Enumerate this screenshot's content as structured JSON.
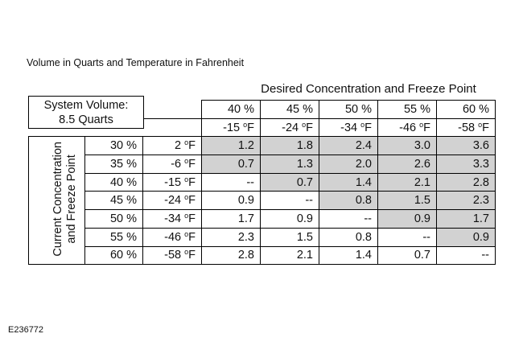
{
  "caption": "Volume in Quarts and Temperature in Fahrenheit",
  "header_title": "Desired Concentration and Freeze Point",
  "system_volume": {
    "line1": "System Volume:",
    "line2": "8.5 Quarts"
  },
  "desired": {
    "concentrations": [
      "40 %",
      "45 %",
      "50 %",
      "55 %",
      "60 %"
    ],
    "freeze_points": [
      "-15 oF",
      "-24 oF",
      "-34 oF",
      "-46 oF",
      "-58 oF"
    ]
  },
  "side_label": {
    "line1": "Current Concentration",
    "line2": "and Freeze Point"
  },
  "rows": [
    {
      "conc": "30 %",
      "freeze": "2 oF",
      "values": [
        "1.2",
        "1.8",
        "2.4",
        "3.0",
        "3.6"
      ]
    },
    {
      "conc": "35 %",
      "freeze": "-6 oF",
      "values": [
        "0.7",
        "1.3",
        "2.0",
        "2.6",
        "3.3"
      ]
    },
    {
      "conc": "40 %",
      "freeze": "-15 oF",
      "values": [
        "--",
        "0.7",
        "1.4",
        "2.1",
        "2.8"
      ]
    },
    {
      "conc": "45 %",
      "freeze": "-24 oF",
      "values": [
        "0.9",
        "--",
        "0.8",
        "1.5",
        "2.3"
      ]
    },
    {
      "conc": "50 %",
      "freeze": "-34 oF",
      "values": [
        "1.7",
        "0.9",
        "--",
        "0.9",
        "1.7"
      ]
    },
    {
      "conc": "55 %",
      "freeze": "-46 oF",
      "values": [
        "2.3",
        "1.5",
        "0.8",
        "--",
        "0.9"
      ]
    },
    {
      "conc": "60 %",
      "freeze": "-58 oF",
      "values": [
        "2.8",
        "2.1",
        "1.4",
        "0.7",
        "--"
      ]
    }
  ],
  "shade_color": "#d2d2d2",
  "figure_id": "E236772"
}
